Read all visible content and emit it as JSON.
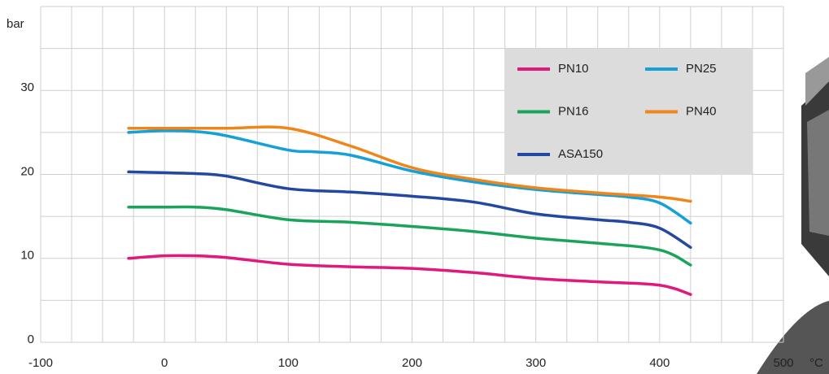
{
  "chart_data": {
    "type": "line",
    "y_label": "bar",
    "x_label": "°C",
    "xlim": [
      -100,
      500
    ],
    "xticks": [
      -100,
      0,
      100,
      200,
      300,
      400,
      500
    ],
    "ylim": [
      0,
      40
    ],
    "yticks": [
      0,
      10,
      20,
      30
    ],
    "grid": true,
    "xgrid_step": 25,
    "ygrid_step": 5,
    "legend": "upper right",
    "series": [
      {
        "name": "PN10",
        "color": "#e0197d",
        "x": [
          -29,
          0,
          25,
          50,
          100,
          150,
          200,
          250,
          300,
          350,
          400,
          425
        ],
        "values": [
          10,
          10.3,
          10.3,
          10.1,
          9.3,
          9.0,
          8.8,
          8.3,
          7.6,
          7.2,
          6.8,
          5.7
        ]
      },
      {
        "name": "PN25",
        "color": "#16a0d8",
        "x": [
          -29,
          0,
          25,
          50,
          100,
          120,
          150,
          200,
          250,
          300,
          350,
          375,
          400,
          425
        ],
        "values": [
          25,
          25.2,
          25.1,
          24.6,
          22.9,
          22.7,
          22.3,
          20.4,
          19.1,
          18.2,
          17.6,
          17.3,
          16.6,
          14.2
        ]
      },
      {
        "name": "PN16",
        "color": "#1aa35a",
        "x": [
          -29,
          0,
          25,
          50,
          100,
          150,
          200,
          250,
          300,
          350,
          400,
          425
        ],
        "values": [
          16.1,
          16.1,
          16.1,
          15.8,
          14.6,
          14.3,
          13.8,
          13.2,
          12.4,
          11.8,
          11.0,
          9.2
        ]
      },
      {
        "name": "PN40",
        "color": "#f08519",
        "x": [
          -29,
          0,
          50,
          100,
          150,
          200,
          250,
          300,
          350,
          400,
          425
        ],
        "values": [
          25.5,
          25.5,
          25.5,
          25.5,
          23.4,
          20.8,
          19.4,
          18.4,
          17.8,
          17.3,
          16.8
        ]
      },
      {
        "name": "ASA150",
        "color": "#2348a0",
        "x": [
          -29,
          0,
          25,
          50,
          100,
          150,
          200,
          250,
          300,
          350,
          375,
          400,
          425
        ],
        "values": [
          20.3,
          20.2,
          20.1,
          19.8,
          18.3,
          17.9,
          17.4,
          16.7,
          15.3,
          14.6,
          14.3,
          13.6,
          11.3
        ]
      }
    ]
  }
}
